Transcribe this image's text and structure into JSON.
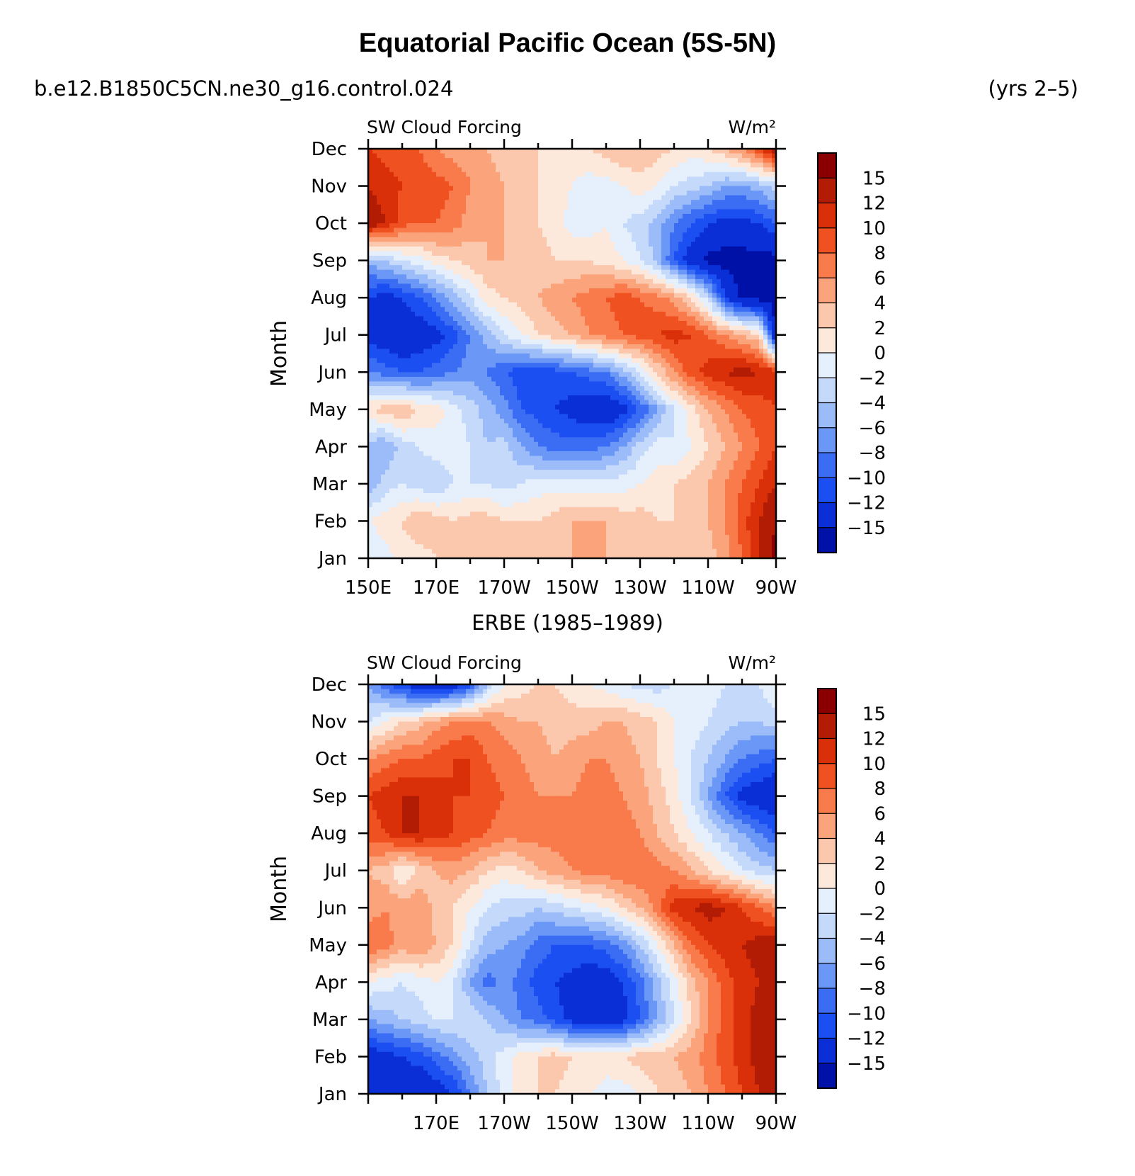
{
  "title": "Equatorial Pacific Ocean (5S-5N)",
  "case_name": "b.e12.B1850C5CN.ne30_g16.control.024",
  "years": "(yrs 2–5)",
  "chart_data": [
    {
      "type": "heatmap",
      "panel": "model",
      "variable_label": "SW Cloud Forcing",
      "units": "W/m²",
      "ylabel": "Month",
      "x_ticks": [
        "150E",
        "170E",
        "170W",
        "150W",
        "130W",
        "110W",
        "90W"
      ],
      "y_ticks": [
        "Jan",
        "Feb",
        "Mar",
        "Apr",
        "May",
        "Jun",
        "Jul",
        "Aug",
        "Sep",
        "Oct",
        "Nov",
        "Dec"
      ],
      "x_lon": [
        150,
        155,
        160,
        165,
        170,
        175,
        180,
        185,
        190,
        195,
        200,
        205,
        210,
        215,
        220,
        225,
        230,
        235,
        240,
        245,
        250,
        255,
        260,
        265,
        270
      ],
      "values": [
        [
          -2,
          -1,
          1,
          1,
          2,
          3,
          3,
          3,
          3,
          2,
          3,
          4,
          4,
          4,
          4,
          3,
          3,
          2,
          2,
          2,
          3,
          5,
          8,
          12,
          16
        ],
        [
          0,
          1,
          2,
          4,
          3,
          2,
          3,
          3,
          2,
          2,
          2,
          3,
          4,
          4,
          4,
          3,
          3,
          2,
          2,
          3,
          4,
          6,
          9,
          12,
          15
        ],
        [
          -6,
          -3,
          -2,
          -3,
          -4,
          -2,
          -2,
          -2,
          -3,
          -2,
          -1,
          -1,
          -1,
          -1,
          -1,
          -1,
          0,
          1,
          2,
          3,
          4,
          6,
          8,
          10,
          12
        ],
        [
          -5,
          -6,
          -3,
          -2,
          -1,
          -1,
          -2,
          -4,
          -3,
          -6,
          -8,
          -9,
          -9,
          -9,
          -8,
          -6,
          -3,
          -1,
          -2,
          0,
          2,
          4,
          6,
          8,
          10
        ],
        [
          2,
          3,
          4,
          2,
          1,
          -1,
          -3,
          -5,
          -7,
          -10,
          -11,
          -12,
          -13,
          -14,
          -15,
          -13,
          -10,
          -6,
          -2,
          1,
          4,
          6,
          8,
          9,
          10
        ],
        [
          -8,
          -9,
          -10,
          -10,
          -9,
          -8,
          -7,
          -8,
          -10,
          -11,
          -12,
          -11,
          -10,
          -9,
          -8,
          -5,
          -2,
          2,
          6,
          9,
          11,
          12,
          13,
          12,
          11
        ],
        [
          -13,
          -14,
          -15,
          -14,
          -13,
          -11,
          -8,
          -5,
          -2,
          0,
          2,
          3,
          4,
          6,
          7,
          8,
          9,
          10,
          11,
          10,
          8,
          6,
          4,
          2,
          -16
        ],
        [
          -12,
          -13,
          -12,
          -10,
          -8,
          -5,
          -2,
          1,
          2,
          3,
          4,
          5,
          6,
          7,
          8,
          9,
          8,
          7,
          5,
          2,
          -3,
          -12,
          -16,
          -16,
          -16
        ],
        [
          -5,
          -4,
          -2,
          -1,
          1,
          2,
          3,
          4,
          4,
          3,
          3,
          2,
          2,
          2,
          1,
          0,
          -2,
          -5,
          -10,
          -14,
          -16,
          -16,
          -16,
          -16,
          -16
        ],
        [
          14,
          12,
          9,
          8,
          8,
          7,
          5,
          4,
          4,
          3,
          2,
          1,
          -1,
          -1,
          0,
          -2,
          -3,
          -5,
          -8,
          -10,
          -12,
          -13,
          -13,
          -12,
          -10
        ],
        [
          12,
          11,
          10,
          10,
          9,
          8,
          6,
          5,
          4,
          3,
          2,
          1,
          0,
          -1,
          -1,
          0,
          1,
          0,
          -2,
          -3,
          -4,
          -6,
          -6,
          -5,
          -3
        ],
        [
          10,
          9,
          8,
          8,
          6,
          5,
          5,
          4,
          3,
          3,
          2,
          2,
          1,
          2,
          3,
          4,
          4,
          3,
          2,
          1,
          2,
          4,
          6,
          10,
          14
        ]
      ],
      "colorbar_labels": [
        "15",
        "12",
        "10",
        "8",
        "6",
        "4",
        "2",
        "0",
        "−2",
        "−4",
        "−6",
        "−8",
        "−10",
        "−12",
        "−15"
      ]
    },
    {
      "type": "heatmap",
      "panel": "observations",
      "title": "ERBE (1985–1989)",
      "variable_label": "SW Cloud Forcing",
      "units": "W/m²",
      "ylabel": "Month",
      "x_ticks": [
        "170E",
        "170W",
        "150W",
        "130W",
        "110W",
        "90W"
      ],
      "y_ticks": [
        "Jan",
        "Feb",
        "Mar",
        "Apr",
        "May",
        "Jun",
        "Jul",
        "Aug",
        "Sep",
        "Oct",
        "Nov",
        "Dec"
      ],
      "x_lon": [
        150,
        155,
        160,
        165,
        170,
        175,
        180,
        185,
        190,
        195,
        200,
        205,
        210,
        215,
        220,
        225,
        230,
        235,
        240,
        245,
        250,
        255,
        260,
        265,
        270
      ],
      "values": [
        [
          -12,
          -13,
          -14,
          -15,
          -14,
          -12,
          -8,
          -4,
          -1,
          1,
          2,
          2,
          1,
          0,
          -1,
          -1,
          0,
          2,
          3,
          4,
          6,
          8,
          10,
          12,
          14
        ],
        [
          -14,
          -13,
          -12,
          -11,
          -9,
          -7,
          -5,
          -3,
          -1,
          1,
          2,
          3,
          2,
          2,
          1,
          2,
          3,
          3,
          4,
          5,
          7,
          9,
          11,
          13,
          15
        ],
        [
          -6,
          -5,
          -4,
          -3,
          -2,
          -2,
          -2,
          -4,
          -6,
          -8,
          -9,
          -11,
          -13,
          -14,
          -14,
          -13,
          -10,
          -6,
          -2,
          2,
          6,
          9,
          11,
          13,
          15
        ],
        [
          0,
          -1,
          -2,
          -1,
          0,
          -2,
          -6,
          -9,
          -7,
          -9,
          -11,
          -12,
          -13,
          -14,
          -14,
          -12,
          -9,
          -5,
          -1,
          3,
          6,
          9,
          11,
          12,
          13
        ],
        [
          8,
          7,
          5,
          6,
          4,
          2,
          -2,
          -5,
          -6,
          -7,
          -9,
          -10,
          -10,
          -10,
          -9,
          -7,
          -4,
          0,
          4,
          8,
          10,
          11,
          12,
          13,
          14
        ],
        [
          5,
          6,
          5,
          6,
          3,
          2,
          0,
          -2,
          -3,
          -3,
          -4,
          -3,
          -2,
          -1,
          0,
          2,
          4,
          7,
          11,
          12,
          13,
          12,
          10,
          8,
          6
        ],
        [
          4,
          3,
          0,
          2,
          4,
          5,
          4,
          2,
          1,
          2,
          4,
          5,
          6,
          7,
          7,
          8,
          8,
          7,
          6,
          4,
          2,
          0,
          -2,
          -3,
          -4
        ],
        [
          9,
          10,
          12,
          12,
          11,
          10,
          9,
          8,
          7,
          7,
          7,
          7,
          7,
          8,
          8,
          7,
          6,
          4,
          2,
          0,
          -2,
          -4,
          -6,
          -8,
          -10
        ],
        [
          10,
          11,
          12,
          12,
          11,
          10,
          10,
          9,
          8,
          7,
          6,
          6,
          6,
          7,
          7,
          6,
          5,
          3,
          1,
          -2,
          -6,
          -10,
          -13,
          -14,
          -15
        ],
        [
          6,
          7,
          8,
          8,
          9,
          10,
          10,
          8,
          7,
          6,
          5,
          4,
          5,
          6,
          6,
          5,
          4,
          2,
          0,
          -2,
          -4,
          -6,
          -8,
          -9,
          -10
        ],
        [
          -2,
          0,
          2,
          3,
          5,
          6,
          7,
          6,
          5,
          4,
          4,
          3,
          3,
          3,
          4,
          4,
          3,
          2,
          0,
          -1,
          -2,
          -3,
          -4,
          -4,
          -3
        ],
        [
          -6,
          -9,
          -12,
          -14,
          -15,
          -14,
          -11,
          -4,
          0,
          1,
          2,
          2,
          1,
          0,
          -1,
          -2,
          -3,
          -3,
          -2,
          -1,
          -1,
          -2,
          -3,
          -2,
          0
        ]
      ],
      "colorbar_labels": [
        "15",
        "12",
        "10",
        "8",
        "6",
        "4",
        "2",
        "0",
        "−2",
        "−4",
        "−6",
        "−8",
        "−10",
        "−12",
        "−15"
      ]
    }
  ],
  "palette": [
    "#00007a",
    "#0011a8",
    "#0a2fd6",
    "#1b4ff2",
    "#3a6cf4",
    "#6b97f6",
    "#9bbcf8",
    "#c5d9fb",
    "#e6f0fd",
    "#fde8dc",
    "#fcc8ad",
    "#fba47c",
    "#f97b4c",
    "#ef5120",
    "#d9300a",
    "#b31c04",
    "#8a0000"
  ]
}
